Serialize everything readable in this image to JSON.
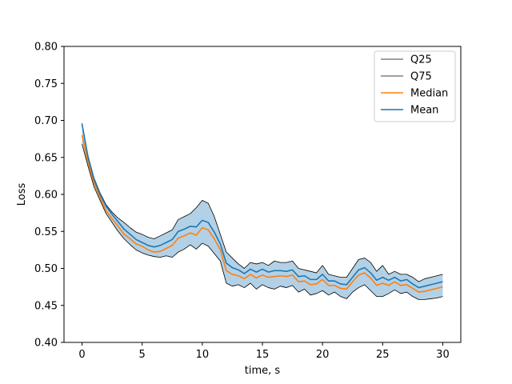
{
  "chart_data": {
    "type": "line",
    "title": "",
    "xlabel": "time, s",
    "ylabel": "Loss",
    "xlim": [
      -1.5,
      31.5
    ],
    "ylim": [
      0.4,
      0.8
    ],
    "x_ticks": [
      0,
      5,
      10,
      15,
      20,
      25,
      30
    ],
    "x_tick_labels": [
      "0",
      "5",
      "10",
      "15",
      "20",
      "25",
      "30"
    ],
    "y_ticks": [
      0.4,
      0.45,
      0.5,
      0.55,
      0.6,
      0.65,
      0.7,
      0.75,
      0.8
    ],
    "y_tick_labels": [
      "0.40",
      "0.45",
      "0.50",
      "0.55",
      "0.60",
      "0.65",
      "0.70",
      "0.75",
      "0.80"
    ],
    "grid": false,
    "legend_position": "top-right",
    "legend": [
      "Q25",
      "Q75",
      "Median",
      "Mean"
    ],
    "x": [
      0,
      0.5,
      1,
      1.5,
      2,
      2.5,
      3,
      3.5,
      4,
      4.5,
      5,
      5.5,
      6,
      6.5,
      7,
      7.5,
      8,
      8.5,
      9,
      9.5,
      10,
      10.5,
      11,
      11.5,
      12,
      12.5,
      13,
      13.5,
      14,
      14.5,
      15,
      15.5,
      16,
      16.5,
      17,
      17.5,
      18,
      18.5,
      19,
      19.5,
      20,
      20.5,
      21,
      21.5,
      22,
      22.5,
      23,
      23.5,
      24,
      24.5,
      25,
      25.5,
      26,
      26.5,
      27,
      27.5,
      28,
      28.5,
      29,
      29.5,
      30
    ],
    "series": [
      {
        "name": "Q25",
        "color": "#000000",
        "values": [
          0.668,
          0.638,
          0.61,
          0.592,
          0.574,
          0.562,
          0.55,
          0.54,
          0.532,
          0.525,
          0.521,
          0.518,
          0.516,
          0.515,
          0.517,
          0.515,
          0.522,
          0.526,
          0.532,
          0.526,
          0.534,
          0.53,
          0.52,
          0.51,
          0.48,
          0.476,
          0.478,
          0.474,
          0.48,
          0.472,
          0.478,
          0.474,
          0.472,
          0.476,
          0.474,
          0.477,
          0.468,
          0.472,
          0.464,
          0.466,
          0.47,
          0.464,
          0.468,
          0.462,
          0.459,
          0.468,
          0.474,
          0.478,
          0.47,
          0.462,
          0.462,
          0.466,
          0.471,
          0.466,
          0.468,
          0.462,
          0.458,
          0.458,
          0.459,
          0.46,
          0.462
        ]
      },
      {
        "name": "Q75",
        "color": "#000000",
        "values": [
          0.696,
          0.652,
          0.622,
          0.602,
          0.586,
          0.576,
          0.568,
          0.562,
          0.555,
          0.549,
          0.546,
          0.542,
          0.54,
          0.544,
          0.548,
          0.552,
          0.566,
          0.57,
          0.574,
          0.582,
          0.592,
          0.588,
          0.57,
          0.546,
          0.522,
          0.514,
          0.506,
          0.5,
          0.508,
          0.506,
          0.508,
          0.504,
          0.51,
          0.508,
          0.508,
          0.51,
          0.5,
          0.498,
          0.496,
          0.494,
          0.504,
          0.492,
          0.49,
          0.488,
          0.488,
          0.5,
          0.512,
          0.514,
          0.508,
          0.496,
          0.504,
          0.492,
          0.496,
          0.492,
          0.492,
          0.488,
          0.482,
          0.486,
          0.488,
          0.49,
          0.492
        ]
      },
      {
        "name": "Median",
        "color": "#ff7f0e",
        "values": [
          0.68,
          0.643,
          0.615,
          0.596,
          0.578,
          0.567,
          0.557,
          0.546,
          0.54,
          0.533,
          0.53,
          0.525,
          0.522,
          0.523,
          0.527,
          0.531,
          0.541,
          0.544,
          0.548,
          0.545,
          0.555,
          0.552,
          0.54,
          0.525,
          0.497,
          0.492,
          0.49,
          0.486,
          0.492,
          0.487,
          0.491,
          0.488,
          0.489,
          0.49,
          0.489,
          0.491,
          0.482,
          0.483,
          0.478,
          0.479,
          0.485,
          0.477,
          0.477,
          0.473,
          0.472,
          0.482,
          0.491,
          0.494,
          0.487,
          0.477,
          0.48,
          0.477,
          0.482,
          0.477,
          0.478,
          0.473,
          0.468,
          0.469,
          0.471,
          0.473,
          0.475
        ]
      },
      {
        "name": "Mean",
        "color": "#1f77b4",
        "values": [
          0.695,
          0.65,
          0.62,
          0.6,
          0.584,
          0.573,
          0.563,
          0.553,
          0.546,
          0.539,
          0.535,
          0.531,
          0.529,
          0.531,
          0.535,
          0.539,
          0.55,
          0.553,
          0.557,
          0.556,
          0.565,
          0.562,
          0.549,
          0.533,
          0.507,
          0.501,
          0.498,
          0.493,
          0.499,
          0.495,
          0.499,
          0.495,
          0.497,
          0.497,
          0.496,
          0.498,
          0.489,
          0.49,
          0.485,
          0.485,
          0.492,
          0.483,
          0.483,
          0.479,
          0.478,
          0.488,
          0.498,
          0.501,
          0.494,
          0.484,
          0.488,
          0.484,
          0.488,
          0.483,
          0.485,
          0.479,
          0.474,
          0.476,
          0.478,
          0.48,
          0.482
        ]
      }
    ],
    "band_fill": "#a6c9e2"
  }
}
